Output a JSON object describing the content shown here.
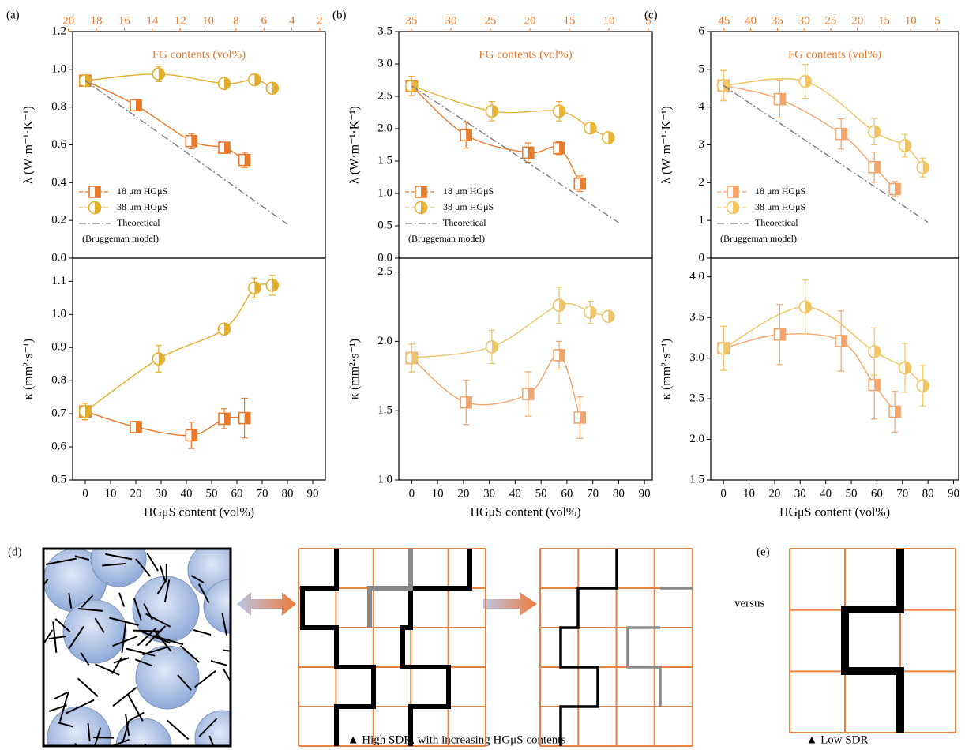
{
  "chart_data": [
    {
      "type": "line",
      "panel": "(a)",
      "ylabel": "λ (W·m⁻¹·K⁻¹)",
      "x2label": "FG contents (vol%)",
      "xlim": [
        -5,
        95
      ],
      "ylim": [
        0,
        1.2
      ],
      "yticks": [
        {
          "value": 0,
          "label": "0.0"
        },
        0.2,
        0.4,
        0.6,
        0.8,
        {
          "value": 1,
          "label": "1.0"
        },
        1.2
      ],
      "x2lim": [
        19.7,
        1.6
      ],
      "x2ticks": [
        20,
        18,
        16,
        14,
        12,
        10,
        8,
        6,
        4,
        2
      ],
      "x2color": "#e8782a",
      "legend": "lower left",
      "series": [
        {
          "name": "18 μm HGμS",
          "color": "#e8782a",
          "marker": "square",
          "x": [
            0,
            20,
            42,
            55,
            63
          ],
          "values": [
            0.94,
            0.81,
            0.62,
            0.585,
            0.52
          ],
          "errors": [
            0.03,
            0.02,
            0.04,
            0.02,
            0.04
          ]
        },
        {
          "name": "38 μm HGμS",
          "color": "#e3ae2b",
          "marker": "circle",
          "x": [
            0,
            29,
            55,
            67,
            74
          ],
          "values": [
            0.94,
            0.975,
            0.925,
            0.945,
            0.9
          ],
          "errors": [
            0.03,
            0.04,
            0.02,
            0.02,
            0.02
          ]
        },
        {
          "name": "Theoretical",
          "name_note": "(Bruggeman model)",
          "color": "#777777",
          "x": [
            0,
            80
          ],
          "values": [
            0.94,
            0.18
          ]
        }
      ]
    },
    {
      "type": "line",
      "ylabel": "κ (mm²·s⁻¹)",
      "xlabel": "HGμS content (vol%)",
      "xlim": [
        -5,
        95
      ],
      "ylim": [
        0.5,
        1.17
      ],
      "xticks": [
        0,
        10,
        20,
        30,
        40,
        50,
        60,
        70,
        80,
        90
      ],
      "yticks": [
        0.5,
        0.6,
        0.7,
        0.8,
        0.9,
        {
          "value": 1,
          "label": "1.0"
        },
        1.1
      ],
      "series": [
        {
          "color": "#e8782a",
          "marker": "square",
          "x": [
            0,
            20,
            42,
            55,
            63
          ],
          "values": [
            0.707,
            0.66,
            0.635,
            0.685,
            0.687
          ],
          "errors": [
            0.025,
            0.01,
            0.04,
            0.03,
            0.06
          ]
        },
        {
          "color": "#e3ae2b",
          "marker": "circle",
          "x": [
            0,
            29,
            55,
            67,
            74
          ],
          "values": [
            0.707,
            0.866,
            0.956,
            1.08,
            1.088
          ],
          "errors": [
            0.025,
            0.04,
            0.015,
            0.03,
            0.03
          ]
        }
      ]
    },
    {
      "type": "line",
      "panel": "(b)",
      "ylabel": "λ (W·m⁻¹·K⁻¹)",
      "x2label": "FG contents (vol%)",
      "xlim": [
        -5,
        93
      ],
      "ylim": [
        0,
        3.5
      ],
      "yticks": [
        {
          "value": 0,
          "label": "0.0"
        },
        0.5,
        {
          "value": 1,
          "label": "1.0"
        },
        1.5,
        {
          "value": 2,
          "label": "2.0"
        },
        2.5,
        {
          "value": 3,
          "label": "3.0"
        },
        3.5
      ],
      "x2lim": [
        36.6,
        4.5
      ],
      "x2ticks": [
        35,
        30,
        25,
        20,
        15,
        10,
        5
      ],
      "x2color": "#e8782a",
      "legend": "lower left",
      "series": [
        {
          "name": "18 μm HGμS",
          "color": "#e97d2e",
          "marker": "square",
          "x": [
            0,
            21,
            45,
            57,
            65
          ],
          "values": [
            2.66,
            1.9,
            1.63,
            1.7,
            1.15
          ],
          "errors": [
            0.15,
            0.2,
            0.15,
            0.1,
            0.12
          ]
        },
        {
          "name": "38 μm HGμS",
          "color": "#e8b43a",
          "marker": "circle",
          "x": [
            0,
            31,
            57,
            69,
            76
          ],
          "values": [
            2.66,
            2.27,
            2.27,
            2.01,
            1.86
          ],
          "errors": [
            0.15,
            0.15,
            0.15,
            0.08,
            0.05
          ]
        },
        {
          "name": "Theoretical",
          "name_note": "(Bruggeman model)",
          "color": "#777777",
          "x": [
            0,
            80
          ],
          "values": [
            2.66,
            0.55
          ]
        }
      ]
    },
    {
      "type": "line",
      "ylabel": "κ (mm²·s⁻¹)",
      "xlabel": "HGμS content (vol%)",
      "xlim": [
        -5,
        93
      ],
      "ylim": [
        1,
        2.6
      ],
      "xticks": [
        0,
        10,
        20,
        30,
        40,
        50,
        60,
        70,
        80,
        90
      ],
      "yticks": [
        {
          "value": 1,
          "label": "1.0"
        },
        1.5,
        {
          "value": 2,
          "label": "2.0"
        },
        2.5
      ],
      "series": [
        {
          "color": "#f1a56e",
          "marker": "square",
          "x": [
            0,
            21,
            45,
            57,
            65
          ],
          "values": [
            1.88,
            1.56,
            1.62,
            1.9,
            1.45
          ],
          "errors": [
            0.1,
            0.16,
            0.16,
            0.1,
            0.15
          ]
        },
        {
          "color": "#ecc46c",
          "marker": "circle",
          "x": [
            0,
            31,
            57,
            69,
            76
          ],
          "values": [
            1.88,
            1.96,
            2.26,
            2.21,
            2.18
          ],
          "errors": [
            0.1,
            0.12,
            0.13,
            0.08,
            0.03
          ]
        }
      ]
    },
    {
      "type": "line",
      "panel": "(c)",
      "ylabel": "λ (W·m⁻¹·K⁻¹)",
      "x2label": "FG contents (vol%)",
      "xlim": [
        -5,
        92
      ],
      "ylim": [
        0,
        6
      ],
      "yticks": [
        0,
        1,
        2,
        3,
        4,
        5,
        6
      ],
      "x2lim": [
        47.5,
        1
      ],
      "x2ticks": [
        45,
        40,
        35,
        30,
        25,
        20,
        15,
        10,
        5
      ],
      "x2color": "#e8782a",
      "legend": "lower left",
      "series": [
        {
          "name": "18 μm HGμS",
          "color": "#f4a56c",
          "marker": "square",
          "x": [
            0,
            22,
            46,
            59,
            67
          ],
          "values": [
            4.57,
            4.21,
            3.29,
            2.41,
            1.83
          ],
          "errors": [
            0.4,
            0.5,
            0.4,
            0.4,
            0.2
          ]
        },
        {
          "name": "38 μm HGμS",
          "color": "#f2c561",
          "marker": "circle",
          "x": [
            0,
            32,
            59,
            71,
            78
          ],
          "values": [
            4.57,
            4.68,
            3.35,
            2.98,
            2.4
          ],
          "errors": [
            0.4,
            0.45,
            0.35,
            0.3,
            0.25
          ]
        },
        {
          "name": "Theoretical",
          "name_note": "(Bruggeman model)",
          "color": "#777777",
          "x": [
            0,
            80
          ],
          "values": [
            4.57,
            0.95
          ]
        }
      ]
    },
    {
      "type": "line",
      "ylabel": "κ (mm²·s⁻¹)",
      "xlabel": "HGμS content (vol%)",
      "xlim": [
        -5,
        92
      ],
      "ylim": [
        1.5,
        4.23
      ],
      "xticks": [
        0,
        10,
        20,
        30,
        40,
        50,
        60,
        70,
        80,
        90
      ],
      "yticks": [
        1.5,
        {
          "value": 2,
          "label": "2.0"
        },
        2.5,
        {
          "value": 3,
          "label": "3.0"
        },
        3.5,
        {
          "value": 4,
          "label": "4.0"
        }
      ],
      "series": [
        {
          "color": "#f4a56c",
          "marker": "square",
          "x": [
            0,
            22,
            46,
            59,
            67
          ],
          "values": [
            3.12,
            3.29,
            3.21,
            2.67,
            2.34
          ],
          "errors": [
            0.27,
            0.37,
            0.37,
            0.42,
            0.25
          ]
        },
        {
          "color": "#f2c561",
          "marker": "circle",
          "x": [
            0,
            32,
            59,
            71,
            78
          ],
          "values": [
            3.12,
            3.63,
            3.08,
            2.88,
            2.66
          ],
          "errors": [
            0.27,
            0.33,
            0.29,
            0.3,
            0.25
          ]
        }
      ]
    }
  ],
  "schematic": {
    "label_d": "(d)",
    "label_e": "(e)",
    "versus": "versus",
    "caption_d": "▲ High SDR, with increasing HGμS contents",
    "caption_e": "▲ Low SDR"
  }
}
